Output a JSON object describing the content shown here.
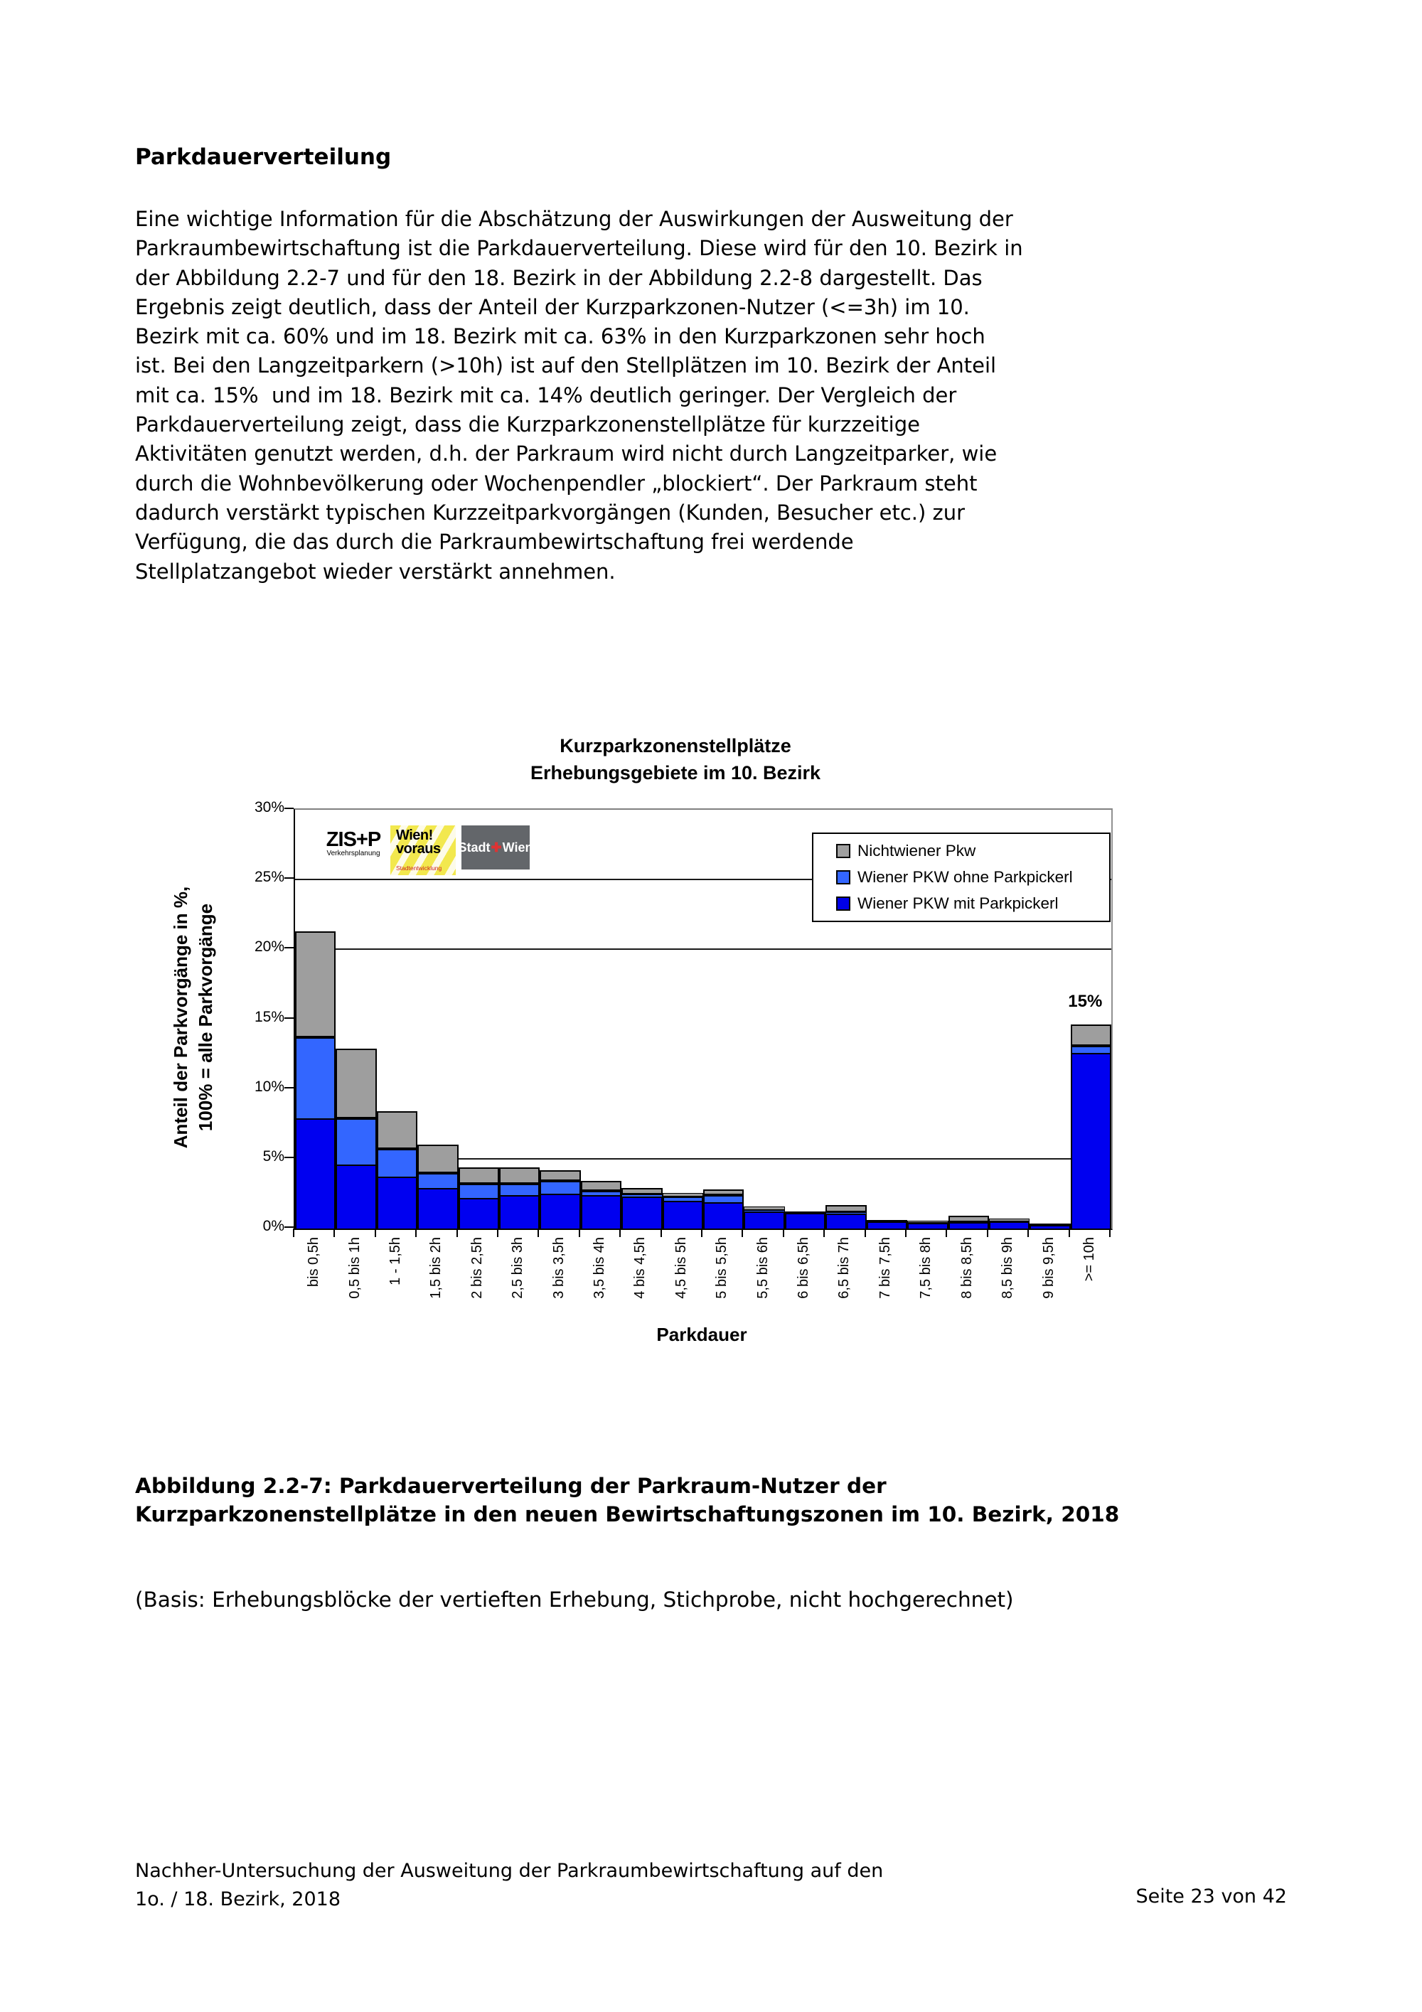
{
  "page": {
    "heading": "Parkdauerverteilung",
    "paragraph": "Eine wichtige Information für die Abschätzung der Auswirkungen der Ausweitung der\nParkraumbewirtschaftung ist die Parkdauerverteilung. Diese wird für den 10. Bezirk in\nder Abbildung 2.2-7 und für den 18. Bezirk in der Abbildung 2.2-8 dargestellt. Das\nErgebnis zeigt deutlich, dass der Anteil der Kurzparkzonen-Nutzer (<=3h) im 10.\nBezirk mit ca. 60% und im 18. Bezirk mit ca. 63% in den Kurzparkzonen sehr hoch\nist. Bei den Langzeitparkern (>10h) ist auf den Stellplätzen im 10. Bezirk der Anteil\nmit ca. 15%  und im 18. Bezirk mit ca. 14% deutlich geringer. Der Vergleich der\nParkdauerverteilung zeigt, dass die Kurzparkzonenstellplätze für kurzzeitige\nAktivitäten genutzt werden, d.h. der Parkraum wird nicht durch Langzeitparker, wie\ndurch die Wohnbevölkerung oder Wochenpendler „blockiert“. Der Parkraum steht\ndadurch verstärkt typischen Kurzzeitparkvorgängen (Kunden, Besucher etc.) zur\nVerfügung, die das durch die Parkraumbewirtschaftung frei werdende\nStellplatzangebot wieder verstärkt annehmen.",
    "caption_bold": "Abbildung 2.2-7: Parkdauerverteilung der Parkraum-Nutzer der\nKurzparkzonenstellplätze in den neuen Bewirtschaftungszonen im 10. Bezirk, 2018",
    "caption_note": "(Basis: Erhebungsblöcke der vertieften Erhebung, Stichprobe, nicht hochgerechnet)",
    "footer_left": "Nachher-Untersuchung der Ausweitung der Parkraumbewirtschaftung auf den\n1o. / 18. Bezirk, 2018",
    "footer_right": "Seite 23 von 42"
  },
  "logos": {
    "zisp_title": "ZIS+P",
    "zisp_subtitle": "Verkehrsplanung",
    "wien_line1": "Wien!",
    "wien_line2": "voraus",
    "wien_subtitle": "Stadtentwicklung",
    "stadt_left": "Stadt",
    "stadt_plus": "✚",
    "stadt_right": "Wien"
  },
  "chart_data": {
    "type": "bar",
    "stacked": true,
    "title_line1": "Kurzparkzonenstellplätze",
    "title_line2": "Erhebungsgebiete im 10. Bezirk",
    "xlabel": "Parkdauer",
    "ylabel_line1": "Anteil der Parkvorgänge in %,",
    "ylabel_line2": "100% = alle Parkvorgänge",
    "ylim": [
      0,
      30
    ],
    "ytick_labels": [
      "0%",
      "5%",
      "10%",
      "15%",
      "20%",
      "25%",
      "30%"
    ],
    "gridlines_at_percent": [
      5,
      20,
      25
    ],
    "legend_position": "top-right",
    "categories": [
      "bis 0,5h",
      "0,5 bis 1h",
      "1 - 1,5h",
      "1,5 bis 2h",
      "2 bis 2,5h",
      "2,5 bis 3h",
      "3 bis 3,5h",
      "3,5 bis 4h",
      "4 bis 4,5h",
      "4,5 bis 5h",
      "5 bis 5,5h",
      "5,5 bis 6h",
      "6 bis 6,5h",
      "6,5 bis 7h",
      "7 bis 7,5h",
      "7,5 bis 8h",
      "8 bis 8,5h",
      "8,5 bis 9h",
      "9 bis 9,5h",
      ">= 10h"
    ],
    "series": [
      {
        "name": "Wiener PKW mit Parkpickerl",
        "color": "#0000F0",
        "values": [
          8.0,
          4.7,
          3.8,
          3.0,
          2.3,
          2.5,
          2.6,
          2.5,
          2.4,
          2.1,
          2.0,
          1.35,
          1.2,
          1.15,
          0.6,
          0.5,
          0.55,
          0.6,
          0.35,
          12.7
        ]
      },
      {
        "name": "Wiener PKW ohne Parkpickerl",
        "color": "#3366FF",
        "values": [
          5.9,
          3.4,
          2.1,
          1.2,
          1.1,
          0.9,
          1.0,
          0.4,
          0.25,
          0.4,
          0.6,
          0.2,
          0.1,
          0.25,
          0.05,
          0.1,
          0.07,
          0.05,
          0.05,
          0.6
        ]
      },
      {
        "name": "Nichtwiener Pkw",
        "color": "#9E9E9E",
        "values": [
          7.6,
          5.0,
          2.7,
          2.0,
          1.2,
          1.2,
          0.8,
          0.7,
          0.45,
          0.25,
          0.4,
          0.25,
          0.1,
          0.5,
          0.07,
          0.15,
          0.45,
          0.2,
          0.1,
          1.5
        ]
      }
    ],
    "legend": [
      {
        "label": "Nichtwiener Pkw",
        "color": "#A0A0A0"
      },
      {
        "label": "Wiener PKW ohne Parkpickerl",
        "color": "#3366FF"
      },
      {
        "label": "Wiener PKW mit Parkpickerl",
        "color": "#0000E8"
      }
    ],
    "annotation": {
      "text": "15%",
      "bar_index": 19
    }
  }
}
